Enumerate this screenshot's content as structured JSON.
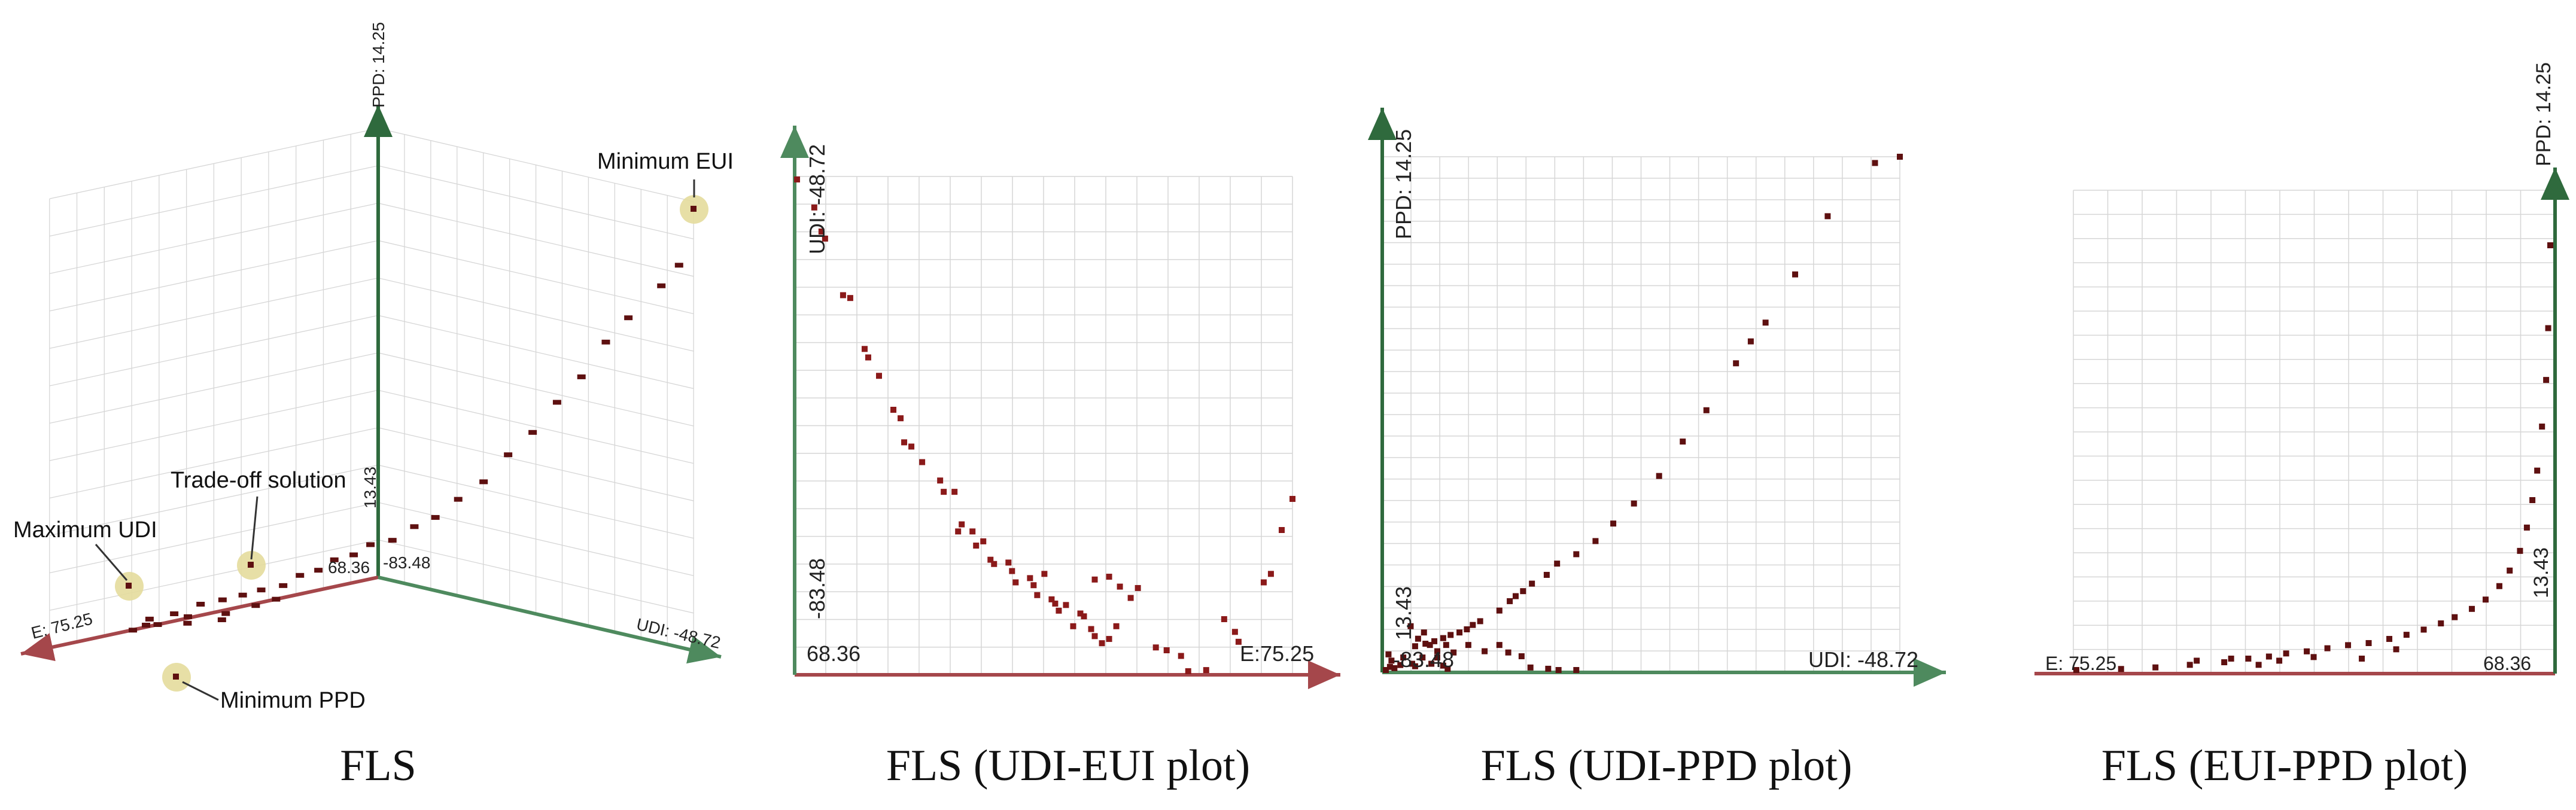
{
  "captions": {
    "p3d": "FLS",
    "p1": "FLS (UDI-EUI plot)",
    "p2": "FLS (UDI-PPD plot)",
    "p3": "FLS (EUI-PPD plot)"
  },
  "colors": {
    "eui_axis": "#a5474b",
    "udi_axis": "#4e8a5e",
    "ppd_axis": "#2f6a3d",
    "points": "#8b1a1a",
    "points_dark": "#5e1010",
    "highlight": "#e4dc9c",
    "grid": "#d6d6d6"
  },
  "panel_3d": {
    "axis_labels": {
      "ppd_top": "PPD: 14.25",
      "ppd_min": "13.43",
      "eui_min": "68.36",
      "eui_max": "E: 75.25",
      "udi_min": "-83.48",
      "udi_max": "UDI: -48.72"
    },
    "annotations": {
      "min_eui": "Minimum EUI",
      "trade_off": "Trade-off solution",
      "max_udi": "Maximum UDI",
      "min_ppd": "Minimum PPD"
    }
  },
  "panel_udi_eui": {
    "y_max_label": "UDI: -48.72",
    "y_min_label": "-83.48",
    "x_min_label": "68.36",
    "x_max_label": "E:75.25"
  },
  "panel_udi_ppd": {
    "y_max_label": "PPD: 14.25",
    "y_min_label": "13.43",
    "x_min_label": "-83.48",
    "x_max_label": "UDI: -48.72"
  },
  "panel_eui_ppd": {
    "y_max_label": "PPD: 14.25",
    "y_min_label": "13.43",
    "x_left_label": "E: 75.25",
    "x_right_label": "68.36"
  },
  "chart_data": [
    {
      "type": "scatter",
      "title": "FLS (UDI-EUI plot)",
      "xlabel": "E",
      "ylabel": "UDI",
      "xlim": [
        68.36,
        75.25
      ],
      "ylim": [
        -83.48,
        -48.72
      ],
      "points": [
        [
          68.36,
          -48.72
        ],
        [
          68.6,
          -50.7
        ],
        [
          68.7,
          -52.4
        ],
        [
          68.75,
          -52.9
        ],
        [
          69.0,
          -56.9
        ],
        [
          69.1,
          -57.1
        ],
        [
          69.3,
          -60.7
        ],
        [
          69.35,
          -61.3
        ],
        [
          69.5,
          -62.6
        ],
        [
          69.7,
          -65.0
        ],
        [
          69.8,
          -65.6
        ],
        [
          69.85,
          -67.3
        ],
        [
          69.95,
          -67.6
        ],
        [
          70.1,
          -68.7
        ],
        [
          70.35,
          -70.0
        ],
        [
          70.4,
          -70.8
        ],
        [
          70.55,
          -70.8
        ],
        [
          70.6,
          -73.6
        ],
        [
          70.65,
          -73.1
        ],
        [
          70.8,
          -73.6
        ],
        [
          70.85,
          -74.6
        ],
        [
          70.95,
          -74.3
        ],
        [
          71.05,
          -75.6
        ],
        [
          71.1,
          -75.9
        ],
        [
          71.3,
          -75.8
        ],
        [
          71.35,
          -76.4
        ],
        [
          71.4,
          -77.2
        ],
        [
          71.6,
          -76.9
        ],
        [
          71.65,
          -77.4
        ],
        [
          71.7,
          -78.1
        ],
        [
          71.8,
          -76.6
        ],
        [
          71.9,
          -78.4
        ],
        [
          71.95,
          -78.7
        ],
        [
          72.0,
          -79.2
        ],
        [
          72.1,
          -78.8
        ],
        [
          72.2,
          -80.3
        ],
        [
          72.3,
          -79.4
        ],
        [
          72.35,
          -79.6
        ],
        [
          72.45,
          -80.5
        ],
        [
          72.5,
          -81.0
        ],
        [
          72.6,
          -81.5
        ],
        [
          72.7,
          -81.2
        ],
        [
          72.8,
          -80.3
        ],
        [
          72.5,
          -77.0
        ],
        [
          72.7,
          -76.8
        ],
        [
          72.85,
          -77.5
        ],
        [
          73.0,
          -78.3
        ],
        [
          73.1,
          -77.6
        ],
        [
          73.35,
          -81.8
        ],
        [
          73.5,
          -82.0
        ],
        [
          73.7,
          -82.4
        ],
        [
          73.8,
          -83.48
        ],
        [
          74.05,
          -83.4
        ],
        [
          74.3,
          -79.8
        ],
        [
          74.45,
          -80.7
        ],
        [
          74.5,
          -81.4
        ],
        [
          74.85,
          -77.2
        ],
        [
          74.95,
          -76.6
        ],
        [
          75.1,
          -73.5
        ],
        [
          75.25,
          -71.3
        ]
      ]
    },
    {
      "type": "scatter",
      "title": "FLS (UDI-PPD plot)",
      "xlabel": "UDI",
      "ylabel": "PPD",
      "xlim": [
        -83.48,
        -48.72
      ],
      "ylim": [
        13.43,
        14.25
      ],
      "points": [
        [
          -83.48,
          13.43
        ],
        [
          -83.3,
          13.455
        ],
        [
          -83.2,
          13.435
        ],
        [
          -83.1,
          13.445
        ],
        [
          -82.9,
          13.433
        ],
        [
          -82.5,
          13.438
        ],
        [
          -82.3,
          13.45
        ],
        [
          -81.7,
          13.44
        ],
        [
          -81.5,
          13.436
        ],
        [
          -81.0,
          13.45
        ],
        [
          -80.4,
          13.44
        ],
        [
          -80.0,
          13.45
        ],
        [
          -79.6,
          13.437
        ],
        [
          -79.3,
          13.432
        ],
        [
          -81.5,
          13.468
        ],
        [
          -80.8,
          13.472
        ],
        [
          -80.2,
          13.476
        ],
        [
          -79.6,
          13.481
        ],
        [
          -79.1,
          13.486
        ],
        [
          -78.5,
          13.49
        ],
        [
          -78.0,
          13.495
        ],
        [
          -77.6,
          13.502
        ],
        [
          -77.1,
          13.508
        ],
        [
          -75.8,
          13.525
        ],
        [
          -75.1,
          13.54
        ],
        [
          -74.7,
          13.548
        ],
        [
          -74.2,
          13.556
        ],
        [
          -73.6,
          13.568
        ],
        [
          -72.6,
          13.582
        ],
        [
          -71.9,
          13.6
        ],
        [
          -70.6,
          13.615
        ],
        [
          -69.3,
          13.636
        ],
        [
          -68.1,
          13.664
        ],
        [
          -66.7,
          13.696
        ],
        [
          -65.0,
          13.74
        ],
        [
          -63.4,
          13.795
        ],
        [
          -61.8,
          13.845
        ],
        [
          -59.8,
          13.92
        ],
        [
          -58.8,
          13.955
        ],
        [
          -57.8,
          13.985
        ],
        [
          -55.8,
          14.062
        ],
        [
          -53.6,
          14.155
        ],
        [
          -50.4,
          14.24
        ],
        [
          -48.72,
          14.25
        ],
        [
          -81.8,
          13.5
        ],
        [
          -81.3,
          13.48
        ],
        [
          -80.9,
          13.49
        ],
        [
          -80.5,
          13.47
        ],
        [
          -80.0,
          13.46
        ],
        [
          -79.4,
          13.47
        ],
        [
          -78.9,
          13.458
        ],
        [
          -77.9,
          13.47
        ],
        [
          -76.8,
          13.46
        ],
        [
          -75.8,
          13.47
        ],
        [
          -75.2,
          13.458
        ],
        [
          -74.3,
          13.452
        ],
        [
          -73.7,
          13.434
        ],
        [
          -72.5,
          13.432
        ],
        [
          -71.8,
          13.43
        ],
        [
          -70.6,
          13.43
        ]
      ]
    },
    {
      "type": "scatter",
      "title": "FLS (EUI-PPD plot)",
      "xlabel": "E",
      "ylabel": "PPD",
      "xlim": [
        75.25,
        68.36
      ],
      "ylim": [
        13.43,
        14.25
      ],
      "points": [
        [
          75.25,
          13.43
        ],
        [
          74.6,
          13.432
        ],
        [
          74.1,
          13.435
        ],
        [
          73.6,
          13.44
        ],
        [
          73.1,
          13.445
        ],
        [
          72.75,
          13.452
        ],
        [
          72.45,
          13.456
        ],
        [
          72.2,
          13.462
        ],
        [
          71.9,
          13.466
        ],
        [
          71.6,
          13.472
        ],
        [
          71.3,
          13.478
        ],
        [
          71.0,
          13.482
        ],
        [
          70.7,
          13.49
        ],
        [
          70.45,
          13.498
        ],
        [
          70.2,
          13.508
        ],
        [
          69.95,
          13.52
        ],
        [
          69.75,
          13.532
        ],
        [
          69.5,
          13.548
        ],
        [
          69.3,
          13.566
        ],
        [
          69.1,
          13.592
        ],
        [
          68.95,
          13.622
        ],
        [
          68.8,
          13.66
        ],
        [
          68.7,
          13.705
        ],
        [
          68.62,
          13.758
        ],
        [
          68.55,
          13.815
        ],
        [
          68.48,
          13.9
        ],
        [
          68.42,
          13.99
        ],
        [
          68.39,
          14.09
        ],
        [
          68.36,
          14.25
        ],
        [
          73.5,
          13.448
        ],
        [
          73.0,
          13.452
        ],
        [
          72.6,
          13.44
        ],
        [
          72.3,
          13.448
        ],
        [
          71.8,
          13.455
        ],
        [
          71.1,
          13.452
        ],
        [
          70.6,
          13.47
        ]
      ]
    },
    {
      "type": "scatter",
      "title": "FLS",
      "xlabel": "E",
      "ylabel": "UDI",
      "zlabel": "PPD",
      "xlim": [
        68.36,
        75.25
      ],
      "ylim": [
        -83.48,
        -48.72
      ],
      "zlim": [
        13.43,
        14.25
      ],
      "points": [
        [
          68.36,
          -48.72,
          14.25
        ],
        [
          68.45,
          -50.4,
          14.2
        ],
        [
          68.6,
          -53.6,
          14.12
        ],
        [
          68.7,
          -55.8,
          14.06
        ],
        [
          68.9,
          -57.8,
          13.98
        ],
        [
          69.1,
          -59.8,
          13.92
        ],
        [
          69.3,
          -61.8,
          13.85
        ],
        [
          69.6,
          -63.4,
          13.8
        ],
        [
          69.9,
          -65.0,
          13.74
        ],
        [
          70.2,
          -66.7,
          13.7
        ],
        [
          70.5,
          -68.1,
          13.66
        ],
        [
          70.8,
          -69.3,
          13.64
        ],
        [
          71.1,
          -70.6,
          13.61
        ],
        [
          71.4,
          -71.9,
          13.6
        ],
        [
          71.7,
          -72.6,
          13.58
        ],
        [
          72.0,
          -73.6,
          13.57
        ],
        [
          72.3,
          -74.2,
          13.55
        ],
        [
          72.6,
          -75.1,
          13.54
        ],
        [
          72.9,
          -75.8,
          13.52
        ],
        [
          73.2,
          -77.1,
          13.51
        ],
        [
          73.5,
          -78.0,
          13.5
        ],
        [
          73.8,
          -79.1,
          13.49
        ],
        [
          74.1,
          -80.4,
          13.48
        ],
        [
          74.5,
          -81.8,
          13.46
        ],
        [
          74.9,
          -83.0,
          13.45
        ],
        [
          75.25,
          -83.48,
          13.43
        ],
        [
          73.9,
          -82.7,
          13.44
        ],
        [
          74.6,
          -83.3,
          13.432
        ],
        [
          73.3,
          -80.8,
          13.445
        ],
        [
          72.8,
          -79.4,
          13.46
        ],
        [
          72.4,
          -78.7,
          13.47
        ],
        [
          74.2,
          -81.5,
          13.436
        ],
        [
          73.6,
          -80.0,
          13.44
        ],
        [
          74.95,
          -83.2,
          13.437
        ]
      ],
      "highlighted": [
        "Minimum EUI",
        "Trade-off solution",
        "Maximum UDI",
        "Minimum PPD"
      ]
    }
  ]
}
